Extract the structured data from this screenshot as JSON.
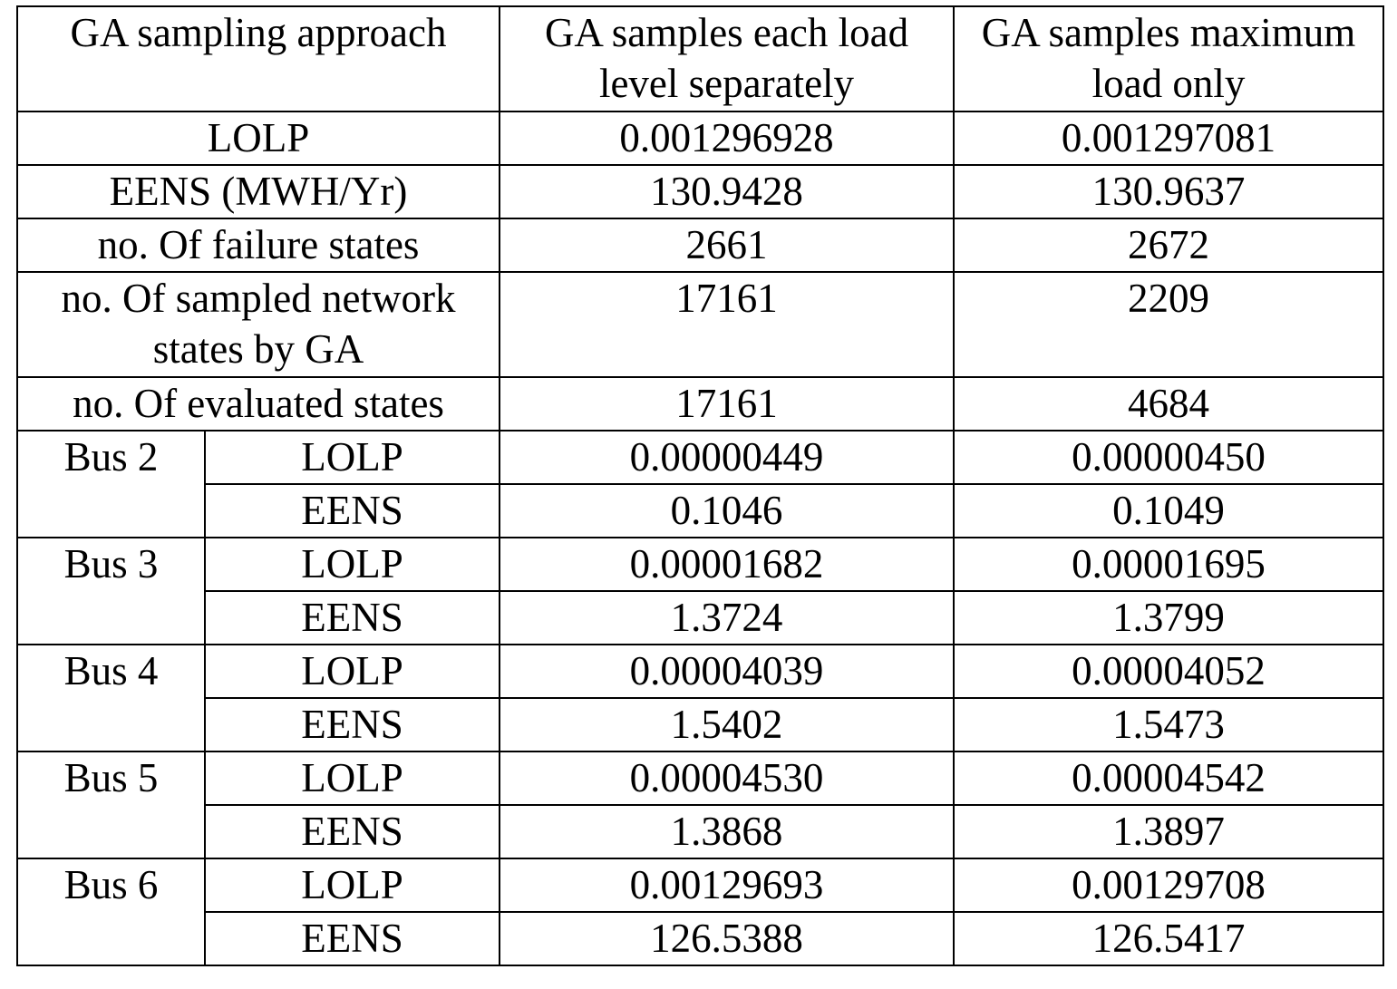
{
  "table": {
    "header": [
      "GA sampling approach",
      "GA samples each load level separately",
      "GA samples maximum load only"
    ],
    "summary": [
      {
        "label": "LOLP",
        "values": [
          "0.001296928",
          "0.001297081"
        ]
      },
      {
        "label": "EENS (MWH/Yr)",
        "values": [
          "130.9428",
          "130.9637"
        ]
      },
      {
        "label": "no. Of failure states",
        "values": [
          "2661",
          "2672"
        ]
      },
      {
        "label": "no. Of sampled network states by GA",
        "values": [
          "17161",
          "2209"
        ]
      },
      {
        "label": "no. Of evaluated states",
        "values": [
          "17161",
          "4684"
        ]
      }
    ],
    "buses": [
      {
        "bus": "Bus 2",
        "rows": [
          {
            "metric": "LOLP",
            "values": [
              "0.00000449",
              "0.00000450"
            ]
          },
          {
            "metric": "EENS",
            "values": [
              "0.1046",
              "0.1049"
            ]
          }
        ]
      },
      {
        "bus": "Bus 3",
        "rows": [
          {
            "metric": "LOLP",
            "values": [
              "0.00001682",
              "0.00001695"
            ]
          },
          {
            "metric": "EENS",
            "values": [
              "1.3724",
              "1.3799"
            ]
          }
        ]
      },
      {
        "bus": "Bus 4",
        "rows": [
          {
            "metric": "LOLP",
            "values": [
              "0.00004039",
              "0.00004052"
            ]
          },
          {
            "metric": "EENS",
            "values": [
              "1.5402",
              "1.5473"
            ]
          }
        ]
      },
      {
        "bus": "Bus 5",
        "rows": [
          {
            "metric": "LOLP",
            "values": [
              "0.00004530",
              "0.00004542"
            ]
          },
          {
            "metric": "EENS",
            "values": [
              "1.3868",
              "1.3897"
            ]
          }
        ]
      },
      {
        "bus": "Bus 6",
        "rows": [
          {
            "metric": "LOLP",
            "values": [
              "0.00129693",
              "0.00129708"
            ]
          },
          {
            "metric": "EENS",
            "values": [
              "126.5388",
              "126.5417"
            ]
          }
        ]
      }
    ]
  }
}
